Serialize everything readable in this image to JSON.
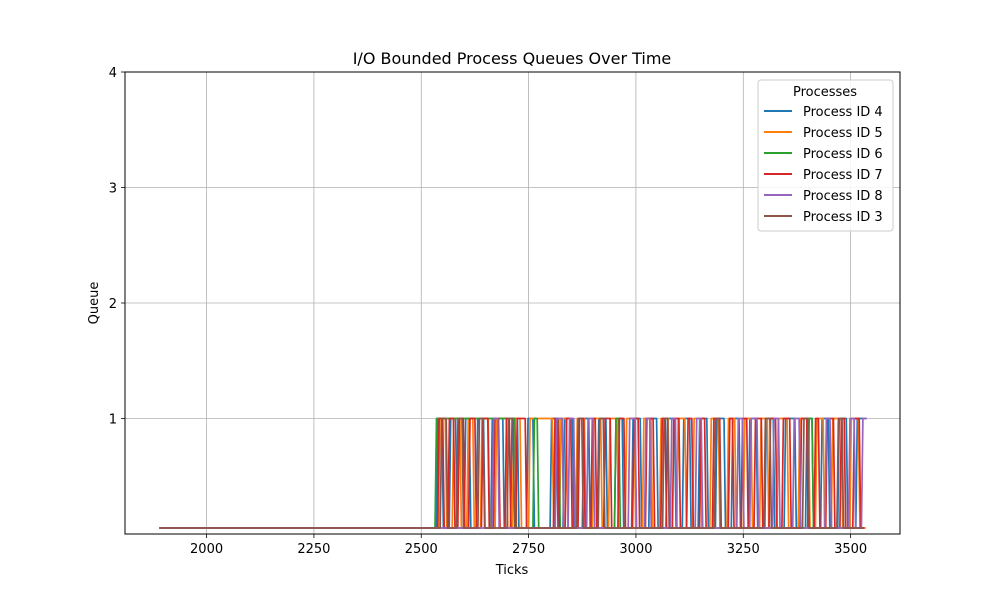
{
  "chart_data": {
    "type": "line",
    "title": "I/O Bounded Process Queues Over Time",
    "xlabel": "Ticks",
    "ylabel": "Queue",
    "xlim": [
      1810,
      3615
    ],
    "ylim": [
      0,
      4
    ],
    "xticks": [
      2000,
      2250,
      2500,
      2750,
      3000,
      3250,
      3500
    ],
    "yticks": [
      1,
      2,
      3,
      4
    ],
    "grid": true,
    "legend": {
      "title": "Processes",
      "placement": "top-right"
    },
    "series": [
      {
        "name": "Process ID 4",
        "color": "#1f77b4",
        "toggles": [
          1890,
          2535,
          2548,
          2565,
          2580,
          2600,
          2612,
          2628,
          2645,
          2662,
          2690,
          2708,
          2724,
          2745,
          2760,
          2800,
          2815,
          2830,
          2852,
          2875,
          2890,
          2910,
          2930,
          2950,
          2968,
          2990,
          3010,
          3030,
          3048,
          3070,
          3090,
          3108,
          3125,
          3145,
          3165,
          3185,
          3205,
          3222,
          3240,
          3262,
          3280,
          3300,
          3320,
          3345,
          3370,
          3395,
          3410,
          3430,
          3448,
          3470,
          3490,
          3512,
          3535
        ]
      },
      {
        "name": "Process ID 5",
        "color": "#ff7f0e",
        "toggles": [
          1890,
          2540,
          2556,
          2572,
          2590,
          2606,
          2620,
          2638,
          2656,
          2672,
          2698,
          2712,
          2730,
          2750,
          2805,
          2822,
          2838,
          2860,
          2880,
          2898,
          2918,
          2936,
          2956,
          2975,
          2996,
          3015,
          3035,
          3055,
          3075,
          3095,
          3114,
          3132,
          3150,
          3172,
          3192,
          3212,
          3230,
          3250,
          3268,
          3288,
          3306,
          3328,
          3352,
          3378,
          3402,
          3418,
          3436,
          3455,
          3478,
          3498,
          3518,
          3535
        ]
      },
      {
        "name": "Process ID 6",
        "color": "#2ca02c",
        "toggles": [
          1890,
          2532,
          2718,
          2760,
          2770,
          2810,
          2820,
          2950,
          2960,
          3400,
          3410,
          3528
        ]
      },
      {
        "name": "Process ID 7",
        "color": "#d62728",
        "toggles": [
          1890,
          2538,
          2550,
          2562,
          2575,
          2585,
          2598,
          2610,
          2625,
          2640,
          2655,
          2668,
          2680,
          2695,
          2705,
          2720,
          2742,
          2808,
          2818,
          2835,
          2848,
          2865,
          2878,
          2895,
          2905,
          2925,
          2940,
          2958,
          2972,
          2992,
          3005,
          3022,
          3040,
          3058,
          3068,
          3085,
          3100,
          3118,
          3130,
          3148,
          3160,
          3178,
          3195,
          3215,
          3225,
          3245,
          3258,
          3275,
          3292,
          3310,
          3325,
          3340,
          3358,
          3382,
          3398,
          3415,
          3425,
          3442,
          3460,
          3475,
          3485,
          3505,
          3520,
          3532
        ]
      },
      {
        "name": "Process ID 8",
        "color": "#9467bd",
        "toggles": [
          1890,
          2665,
          2678,
          2812,
          2828,
          2842,
          2855,
          2885,
          2900,
          2982,
          2998,
          3020,
          3032,
          3080,
          3092,
          3138,
          3152,
          3235,
          3248,
          3265,
          3282,
          3318,
          3332,
          3365,
          3380,
          3440,
          3452,
          3495,
          3508,
          3525,
          3538
        ]
      },
      {
        "name": "Process ID 3",
        "color": "#8c564b",
        "toggles": [
          1890,
          2544,
          2558,
          2582,
          2595,
          2632,
          2644,
          2700,
          2714,
          2862,
          2874,
          2912,
          2924,
          3062,
          3074,
          3182,
          3194,
          3298,
          3312,
          3388,
          3400,
          3468,
          3480,
          3530
        ]
      }
    ]
  }
}
